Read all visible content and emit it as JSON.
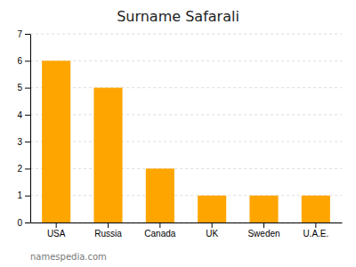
{
  "chart_data": {
    "type": "bar",
    "title": "Surname Safarali",
    "categories": [
      "USA",
      "Russia",
      "Canada",
      "UK",
      "Sweden",
      "U.A.E."
    ],
    "values": [
      6,
      5,
      2,
      1,
      1,
      1
    ],
    "color": "#FFA500",
    "ylim": [
      0,
      7
    ],
    "yticks": [
      0,
      1,
      2,
      3,
      4,
      5,
      6,
      7
    ],
    "grid": true,
    "annotations": [
      "namespedia.com"
    ]
  }
}
